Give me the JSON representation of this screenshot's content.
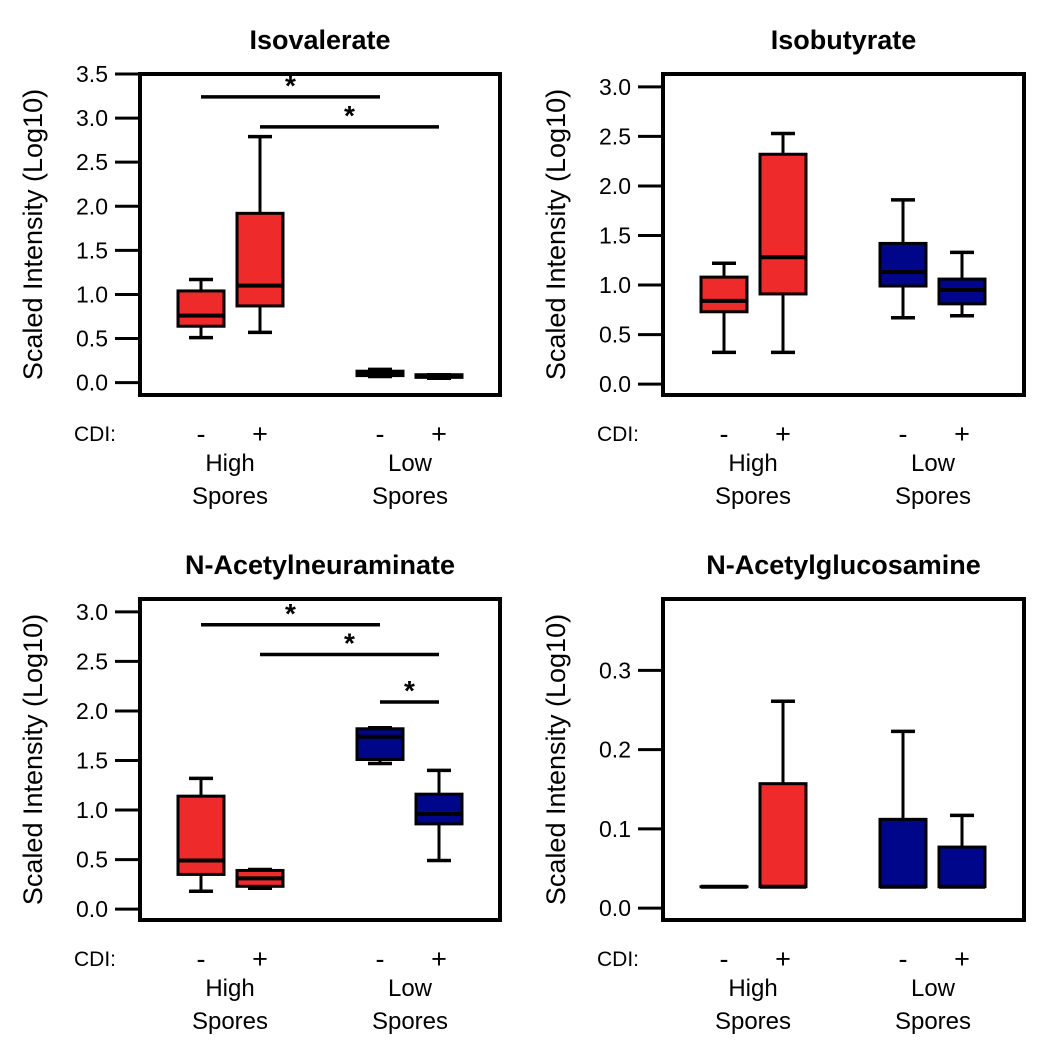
{
  "colors": {
    "high_spores": "#ee2a2a",
    "low_spores": "#00068a",
    "stroke": "#000000"
  },
  "chart_data": [
    {
      "type": "box",
      "title": "Isovalerate",
      "ylabel": "Scaled Intensity (Log10)",
      "ylim": [
        -0.14,
        3.5
      ],
      "yticks": [
        "0.0",
        "0.5",
        "1.0",
        "1.5",
        "2.0",
        "2.5",
        "3.0",
        "3.5"
      ],
      "cdi_label": "CDI:",
      "groups": [
        {
          "name_lines": [
            "High",
            "Spores"
          ]
        },
        {
          "name_lines": [
            "Low",
            "Spores"
          ]
        }
      ],
      "boxes": [
        {
          "group": 0,
          "cdi": "-",
          "min": 0.51,
          "q1": 0.64,
          "median": 0.76,
          "q3": 1.04,
          "max": 1.17
        },
        {
          "group": 0,
          "cdi": "+",
          "min": 0.57,
          "q1": 0.87,
          "median": 1.1,
          "q3": 1.92,
          "max": 2.79
        },
        {
          "group": 1,
          "cdi": "-",
          "min": 0.07,
          "q1": 0.08,
          "median": 0.1,
          "q3": 0.13,
          "max": 0.15
        },
        {
          "group": 1,
          "cdi": "+",
          "min": 0.05,
          "q1": 0.06,
          "median": 0.08,
          "q3": 0.09,
          "max": 0.09
        }
      ],
      "significance": [
        {
          "from": 0,
          "to": 2,
          "y": 3.24,
          "label": "*"
        },
        {
          "from": 1,
          "to": 3,
          "y": 2.9,
          "label": "*"
        }
      ]
    },
    {
      "type": "box",
      "title": "Isobutyrate",
      "ylabel": "Scaled Intensity (Log10)",
      "ylim": [
        -0.11,
        3.13
      ],
      "yticks": [
        "0.0",
        "0.5",
        "1.0",
        "1.5",
        "2.0",
        "2.5",
        "3.0"
      ],
      "cdi_label": "CDI:",
      "groups": [
        {
          "name_lines": [
            "High",
            "Spores"
          ]
        },
        {
          "name_lines": [
            "Low",
            "Spores"
          ]
        }
      ],
      "boxes": [
        {
          "group": 0,
          "cdi": "-",
          "min": 0.32,
          "q1": 0.73,
          "median": 0.84,
          "q3": 1.08,
          "max": 1.22
        },
        {
          "group": 0,
          "cdi": "+",
          "min": 0.32,
          "q1": 0.91,
          "median": 1.28,
          "q3": 2.32,
          "max": 2.53
        },
        {
          "group": 1,
          "cdi": "-",
          "min": 0.67,
          "q1": 0.99,
          "median": 1.13,
          "q3": 1.42,
          "max": 1.86
        },
        {
          "group": 1,
          "cdi": "+",
          "min": 0.69,
          "q1": 0.81,
          "median": 0.95,
          "q3": 1.06,
          "max": 1.33
        }
      ],
      "significance": []
    },
    {
      "type": "box",
      "title": "N-Acetylneuraminate",
      "ylabel": "Scaled Intensity (Log10)",
      "ylim": [
        -0.11,
        3.13
      ],
      "yticks": [
        "0.0",
        "0.5",
        "1.0",
        "1.5",
        "2.0",
        "2.5",
        "3.0"
      ],
      "cdi_label": "CDI:",
      "groups": [
        {
          "name_lines": [
            "High",
            "Spores"
          ]
        },
        {
          "name_lines": [
            "Low",
            "Spores"
          ]
        }
      ],
      "boxes": [
        {
          "group": 0,
          "cdi": "-",
          "min": 0.18,
          "q1": 0.35,
          "median": 0.49,
          "q3": 1.14,
          "max": 1.32
        },
        {
          "group": 0,
          "cdi": "+",
          "min": 0.21,
          "q1": 0.23,
          "median": 0.31,
          "q3": 0.39,
          "max": 0.4
        },
        {
          "group": 1,
          "cdi": "-",
          "min": 1.47,
          "q1": 1.51,
          "median": 1.74,
          "q3": 1.82,
          "max": 1.83
        },
        {
          "group": 1,
          "cdi": "+",
          "min": 0.49,
          "q1": 0.86,
          "median": 0.96,
          "q3": 1.16,
          "max": 1.4
        }
      ],
      "significance": [
        {
          "from": 0,
          "to": 2,
          "y": 2.87,
          "label": "*"
        },
        {
          "from": 1,
          "to": 3,
          "y": 2.57,
          "label": "*"
        },
        {
          "from": 2,
          "to": 3,
          "y": 2.09,
          "label": "*"
        }
      ]
    },
    {
      "type": "box",
      "title": "N-Acetylglucosamine",
      "ylabel": "Scaled Intensity (Log10)",
      "ylim": [
        -0.015,
        0.39
      ],
      "yticks": [
        "0.0",
        "0.1",
        "0.2",
        "0.3"
      ],
      "cdi_label": "CDI:",
      "groups": [
        {
          "name_lines": [
            "High",
            "Spores"
          ]
        },
        {
          "name_lines": [
            "Low",
            "Spores"
          ]
        }
      ],
      "boxes": [
        {
          "group": 0,
          "cdi": "-",
          "min": 0.027,
          "q1": 0.027,
          "median": 0.027,
          "q3": 0.027,
          "max": 0.027
        },
        {
          "group": 0,
          "cdi": "+",
          "min": 0.027,
          "q1": 0.027,
          "median": 0.027,
          "q3": 0.157,
          "max": 0.261
        },
        {
          "group": 1,
          "cdi": "-",
          "min": 0.027,
          "q1": 0.027,
          "median": 0.027,
          "q3": 0.112,
          "max": 0.223
        },
        {
          "group": 1,
          "cdi": "+",
          "min": 0.027,
          "q1": 0.027,
          "median": 0.027,
          "q3": 0.077,
          "max": 0.117
        }
      ],
      "significance": []
    }
  ]
}
